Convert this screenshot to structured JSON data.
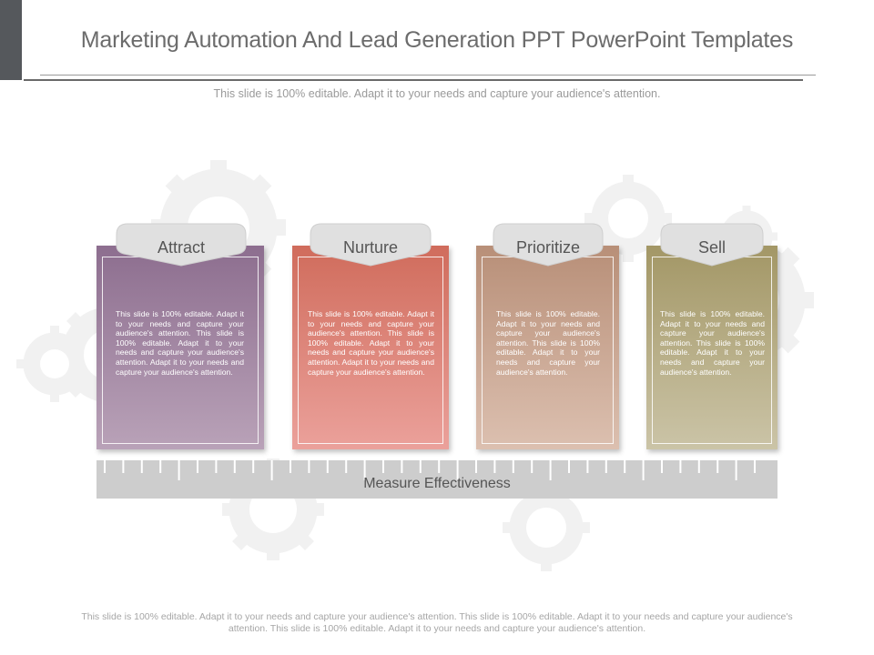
{
  "slide": {
    "title": "Marketing Automation And Lead Generation PPT PowerPoint Templates",
    "subtitle": "This slide is 100% editable. Adapt it to your needs and capture your audience's attention."
  },
  "stages": [
    {
      "label": "Attract",
      "color": "#9a7f9c",
      "text": "This slide is 100% editable. Adapt it to your needs and capture your audience's attention. This slide is 100% editable. Adapt it to your needs and capture your audience's attention. Adapt it to your needs and capture your audience's attention."
    },
    {
      "label": "Nurture",
      "color": "#dd7d6d",
      "text": "This slide is 100% editable. Adapt it to your needs and capture your audience's attention. This slide is 100% editable. Adapt it to your needs and capture your audience's attention. Adapt it to your needs and capture your audience's attention."
    },
    {
      "label": "Prioritize",
      "color": "#c7a18c",
      "text": "This slide is 100% editable. Adapt it to your needs and capture your audience's attention. This slide is 100% editable. Adapt it to your needs and capture your audience's attention."
    },
    {
      "label": "Sell",
      "color": "#aba17a",
      "text": "This slide is 100% editable. Adapt it to your needs and capture your audience's attention. This slide is 100% editable. Adapt it to your needs and capture your audience's attention."
    }
  ],
  "ruler": {
    "label": "Measure Effectiveness"
  },
  "footer": {
    "line1": "This slide is 100% editable. Adapt it to your needs and capture your audience's attention. This slide is 100% editable. Adapt it to your needs and capture your audience's",
    "line2": "attention. This slide is 100% editable. Adapt it to your needs and capture your audience's attention."
  }
}
